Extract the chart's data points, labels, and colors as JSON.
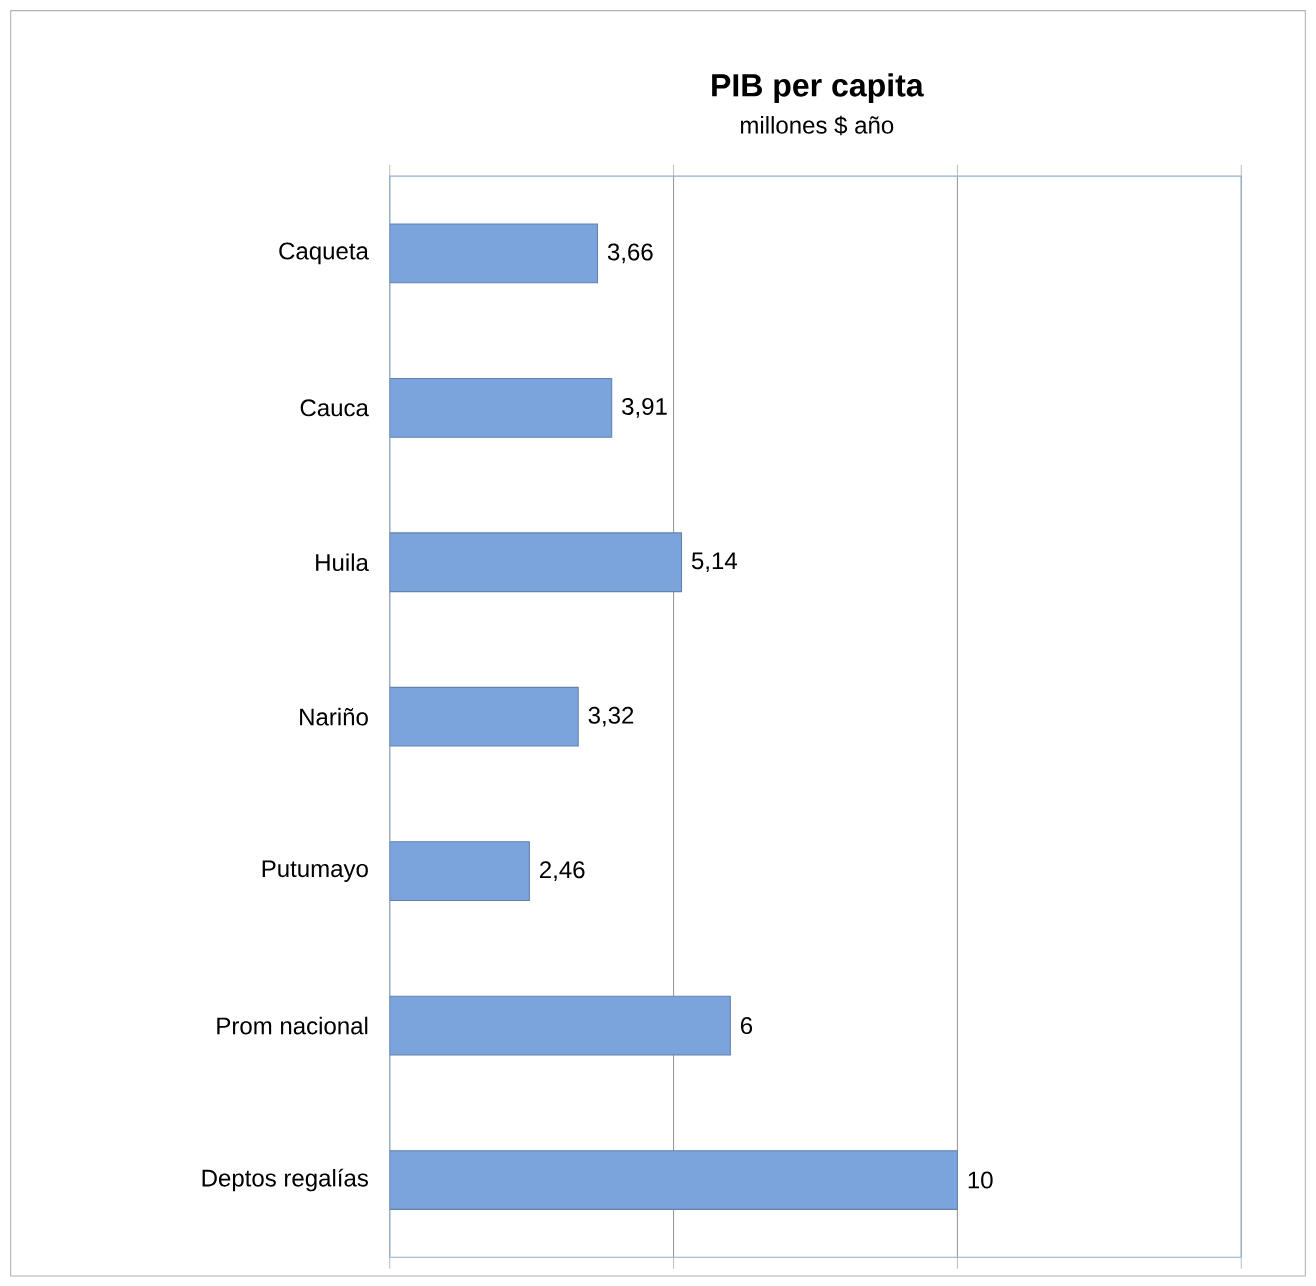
{
  "chart_data": {
    "type": "bar",
    "orientation": "horizontal",
    "title": "PIB per capita",
    "subtitle": "millones $ año",
    "categories": [
      "Caqueta",
      "Cauca",
      "Huila",
      "Nariño",
      "Putumayo",
      "Prom nacional",
      "Deptos regalías"
    ],
    "values": [
      3.66,
      3.91,
      5.14,
      3.32,
      2.46,
      6,
      10
    ],
    "value_labels": [
      "3,66",
      "3,91",
      "5,14",
      "3,32",
      "2,46",
      "6",
      "10"
    ],
    "color": "#7ba3dc",
    "xlim": [
      0,
      15
    ],
    "xticks": [
      {
        "value": 0,
        "label": null
      },
      {
        "value": 5,
        "label": null
      },
      {
        "value": 10,
        "label": null
      },
      {
        "value": 15,
        "label": null
      }
    ],
    "tick_labels": "y",
    "grid": "x"
  }
}
